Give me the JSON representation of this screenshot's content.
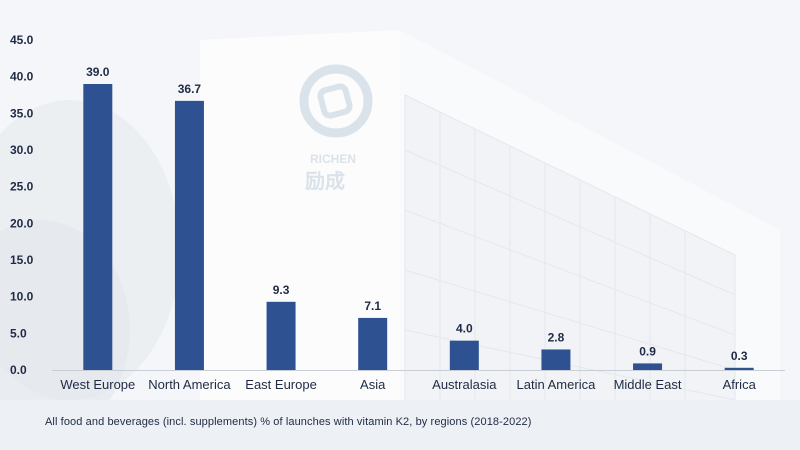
{
  "logo": {
    "text_latin": "RICHEN",
    "text_cjk": "励成"
  },
  "caption": "All food and beverages (incl. supplements) % of launches with vitamin K2, by regions   (2018-2022)",
  "colors": {
    "bar": "#2e5191",
    "text": "#1f2a44",
    "axis": "#c9ced6"
  },
  "chart_data": {
    "type": "bar",
    "categories": [
      "West Europe",
      "North America",
      "East Europe",
      "Asia",
      "Australasia",
      "Latin America",
      "Middle East",
      "Africa"
    ],
    "values": [
      39.0,
      36.7,
      9.3,
      7.1,
      4.0,
      2.8,
      0.9,
      0.3
    ],
    "value_labels": [
      "39.0",
      "36.7",
      "9.3",
      "7.1",
      "4.0",
      "2.8",
      "0.9",
      "0.3"
    ],
    "yticks": [
      "0.0",
      "5.0",
      "10.0",
      "15.0",
      "20.0",
      "25.0",
      "30.0",
      "35.0",
      "40.0",
      "45.0"
    ],
    "ylim": [
      0,
      45
    ],
    "title": "",
    "xlabel": "",
    "ylabel": "",
    "grid": false,
    "legend": "none"
  }
}
